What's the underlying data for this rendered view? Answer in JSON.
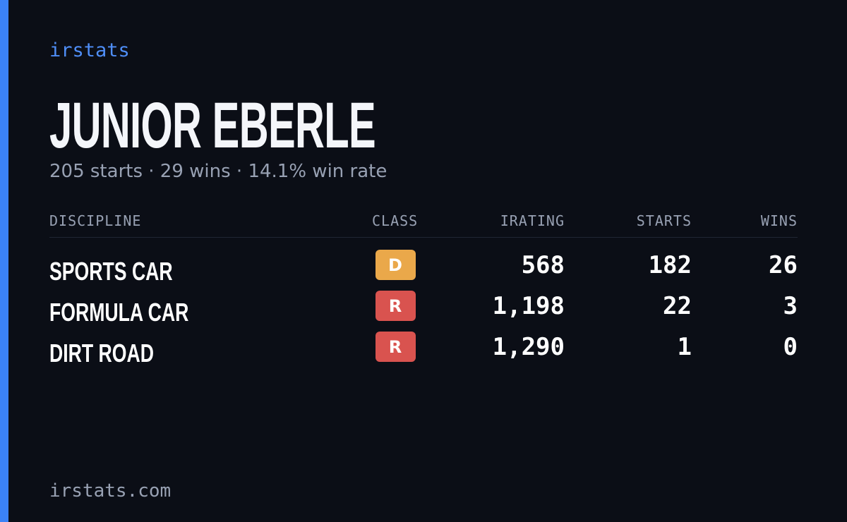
{
  "brand": "irstats",
  "driver": {
    "name": "JUNIOR EBERLE",
    "summary": "205 starts · 29 wins · 14.1% win rate"
  },
  "table": {
    "headers": [
      "DISCIPLINE",
      "CLASS",
      "IRATING",
      "STARTS",
      "WINS"
    ],
    "rows": [
      {
        "discipline": "SPORTS CAR",
        "class": "D",
        "class_color": "#eaa84a",
        "irating": "568",
        "starts": "182",
        "wins": "26"
      },
      {
        "discipline": "FORMULA CAR",
        "class": "R",
        "class_color": "#d9534f",
        "irating": "1,198",
        "starts": "22",
        "wins": "3"
      },
      {
        "discipline": "DIRT ROAD",
        "class": "R",
        "class_color": "#d9534f",
        "irating": "1,290",
        "starts": "1",
        "wins": "0"
      }
    ]
  },
  "footer": "irstats.com"
}
